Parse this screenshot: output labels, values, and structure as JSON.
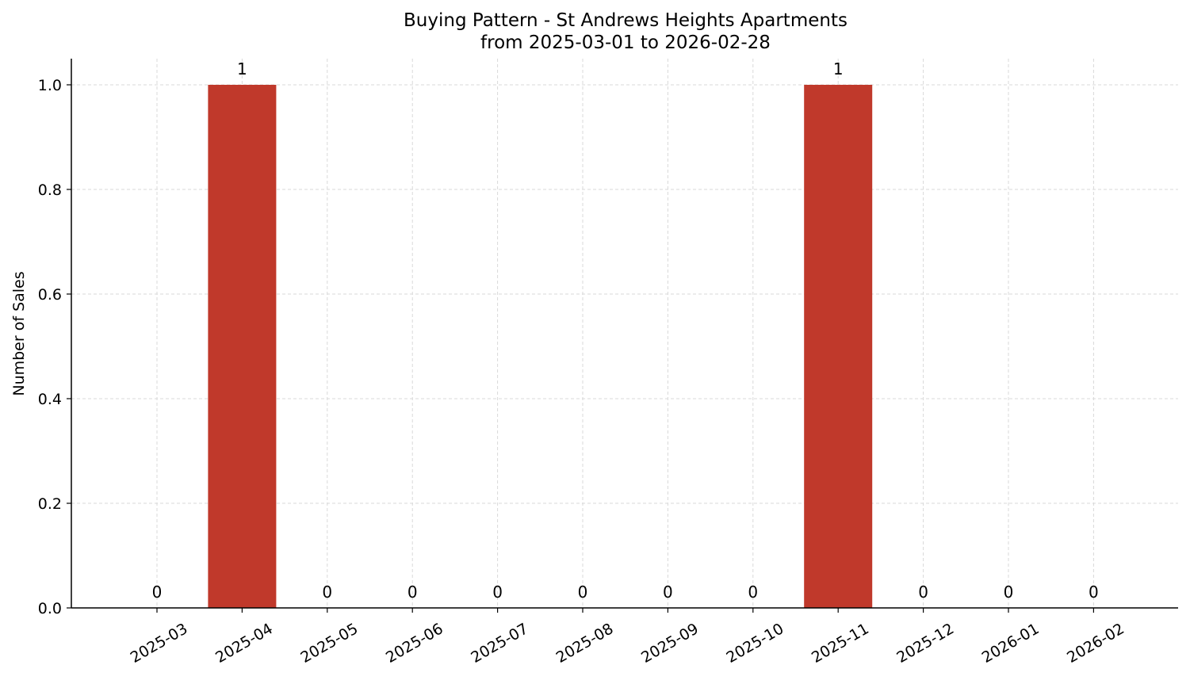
{
  "chart_data": {
    "type": "bar",
    "title": "Buying Pattern - St Andrews Heights Apartments",
    "subtitle": "from 2025-03-01 to 2026-02-28",
    "xlabel": "",
    "ylabel": "Number of Sales",
    "categories": [
      "2025-03",
      "2025-04",
      "2025-05",
      "2025-06",
      "2025-07",
      "2025-08",
      "2025-09",
      "2025-10",
      "2025-11",
      "2025-12",
      "2026-01",
      "2026-02"
    ],
    "values": [
      0,
      1,
      0,
      0,
      0,
      0,
      0,
      0,
      1,
      0,
      0,
      0
    ],
    "data_labels": [
      "0",
      "1",
      "0",
      "0",
      "0",
      "0",
      "0",
      "0",
      "1",
      "0",
      "0",
      "0"
    ],
    "ylim": [
      0,
      1.05
    ],
    "yticks": [
      0.0,
      0.2,
      0.4,
      0.6,
      0.8,
      1.0
    ],
    "ytick_labels": [
      "0.0",
      "0.2",
      "0.4",
      "0.6",
      "0.8",
      "1.0"
    ],
    "grid": true,
    "bar_color": "#c0392b",
    "grid_color": "#d9d9d9"
  }
}
